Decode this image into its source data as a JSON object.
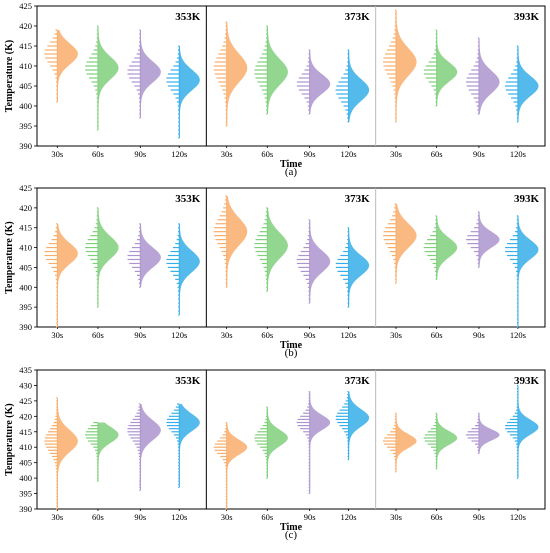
{
  "figure": {
    "sub_labels": [
      "(a)",
      "(b)",
      "(c)"
    ],
    "colors": [
      "#f9ad6a",
      "#7fcf7b",
      "#ad94cf",
      "#36aee8"
    ]
  },
  "chart_data": [
    {
      "type": "violin",
      "label": "(a)",
      "ylabel": "Temperature (K)",
      "xlabel": "Time",
      "ylim": [
        390,
        425
      ],
      "yticks": [
        390,
        395,
        400,
        405,
        410,
        415,
        420,
        425
      ],
      "categories": [
        "30s",
        "60s",
        "90s",
        "120s"
      ],
      "panels": [
        {
          "temperature": "353K",
          "series": [
            {
              "category": "30s",
              "center": 413,
              "spread": 2.6,
              "min": 401,
              "max": 419
            },
            {
              "category": "60s",
              "center": 409.5,
              "spread": 2.8,
              "min": 394,
              "max": 420
            },
            {
              "category": "90s",
              "center": 408.5,
              "spread": 2.6,
              "min": 397,
              "max": 419
            },
            {
              "category": "120s",
              "center": 406.5,
              "spread": 2.6,
              "min": 392,
              "max": 415
            }
          ]
        },
        {
          "temperature": "373K",
          "series": [
            {
              "category": "30s",
              "center": 409.5,
              "spread": 3.5,
              "min": 395,
              "max": 421
            },
            {
              "category": "60s",
              "center": 408.5,
              "spread": 3.2,
              "min": 398,
              "max": 420
            },
            {
              "category": "90s",
              "center": 405.5,
              "spread": 2.4,
              "min": 398,
              "max": 414
            },
            {
              "category": "120s",
              "center": 404,
              "spread": 2.7,
              "min": 396,
              "max": 414
            }
          ]
        },
        {
          "temperature": "393K",
          "series": [
            {
              "category": "30s",
              "center": 411,
              "spread": 3.4,
              "min": 396,
              "max": 424
            },
            {
              "category": "60s",
              "center": 408.5,
              "spread": 2.4,
              "min": 400,
              "max": 419
            },
            {
              "category": "90s",
              "center": 406,
              "spread": 2.8,
              "min": 398,
              "max": 417
            },
            {
              "category": "120s",
              "center": 405,
              "spread": 2.5,
              "min": 396,
              "max": 415
            }
          ]
        }
      ]
    },
    {
      "type": "violin",
      "label": "(b)",
      "ylabel": "Temperature (K)",
      "xlabel": "Time",
      "ylim": [
        390,
        425
      ],
      "yticks": [
        390,
        395,
        400,
        405,
        410,
        415,
        420,
        425
      ],
      "categories": [
        "30s",
        "60s",
        "90s",
        "120s"
      ],
      "panels": [
        {
          "temperature": "353K",
          "series": [
            {
              "category": "30s",
              "center": 408.5,
              "spread": 2.6,
              "min": 390,
              "max": 416
            },
            {
              "category": "60s",
              "center": 410,
              "spread": 2.8,
              "min": 395,
              "max": 420
            },
            {
              "category": "90s",
              "center": 407.5,
              "spread": 2.5,
              "min": 400,
              "max": 416
            },
            {
              "category": "120s",
              "center": 406.5,
              "spread": 2.7,
              "min": 393,
              "max": 416
            }
          ]
        },
        {
          "temperature": "373K",
          "series": [
            {
              "category": "30s",
              "center": 414,
              "spread": 3.4,
              "min": 400,
              "max": 423
            },
            {
              "category": "60s",
              "center": 410.5,
              "spread": 3.2,
              "min": 399,
              "max": 420
            },
            {
              "category": "90s",
              "center": 406.5,
              "spread": 2.7,
              "min": 396,
              "max": 417
            },
            {
              "category": "120s",
              "center": 405.5,
              "spread": 2.5,
              "min": 395,
              "max": 415
            }
          ]
        },
        {
          "temperature": "393K",
          "series": [
            {
              "category": "30s",
              "center": 413,
              "spread": 3.0,
              "min": 401,
              "max": 421
            },
            {
              "category": "60s",
              "center": 410,
              "spread": 2.4,
              "min": 402,
              "max": 418
            },
            {
              "category": "90s",
              "center": 412,
              "spread": 2.0,
              "min": 405,
              "max": 419
            },
            {
              "category": "120s",
              "center": 409.5,
              "spread": 2.4,
              "min": 390,
              "max": 418
            }
          ]
        }
      ]
    },
    {
      "type": "violin",
      "label": "(c)",
      "ylabel": "Temperature (K)",
      "xlabel": "Time",
      "ylim": [
        390,
        435
      ],
      "yticks": [
        390,
        395,
        400,
        405,
        410,
        415,
        420,
        425,
        430,
        435
      ],
      "categories": [
        "30s",
        "60s",
        "90s",
        "120s"
      ],
      "panels": [
        {
          "temperature": "353K",
          "series": [
            {
              "category": "30s",
              "center": 412,
              "spread": 3.5,
              "min": 390,
              "max": 426
            },
            {
              "category": "60s",
              "center": 414,
              "spread": 2.6,
              "min": 399,
              "max": 418
            },
            {
              "category": "90s",
              "center": 415.5,
              "spread": 3.2,
              "min": 396,
              "max": 424
            },
            {
              "category": "120s",
              "center": 418,
              "spread": 2.8,
              "min": 397,
              "max": 424
            }
          ]
        },
        {
          "temperature": "373K",
          "series": [
            {
              "category": "30s",
              "center": 410,
              "spread": 2.4,
              "min": 390,
              "max": 418
            },
            {
              "category": "60s",
              "center": 413,
              "spread": 2.6,
              "min": 400,
              "max": 423
            },
            {
              "category": "90s",
              "center": 418,
              "spread": 2.4,
              "min": 395,
              "max": 428
            },
            {
              "category": "120s",
              "center": 419.5,
              "spread": 2.8,
              "min": 406,
              "max": 428
            }
          ]
        },
        {
          "temperature": "393K",
          "series": [
            {
              "category": "30s",
              "center": 412,
              "spread": 2.2,
              "min": 402,
              "max": 421
            },
            {
              "category": "60s",
              "center": 413,
              "spread": 2.2,
              "min": 403,
              "max": 421
            },
            {
              "category": "90s",
              "center": 414,
              "spread": 1.8,
              "min": 408,
              "max": 421
            },
            {
              "category": "120s",
              "center": 416.5,
              "spread": 2.4,
              "min": 400,
              "max": 430
            }
          ]
        }
      ]
    }
  ]
}
